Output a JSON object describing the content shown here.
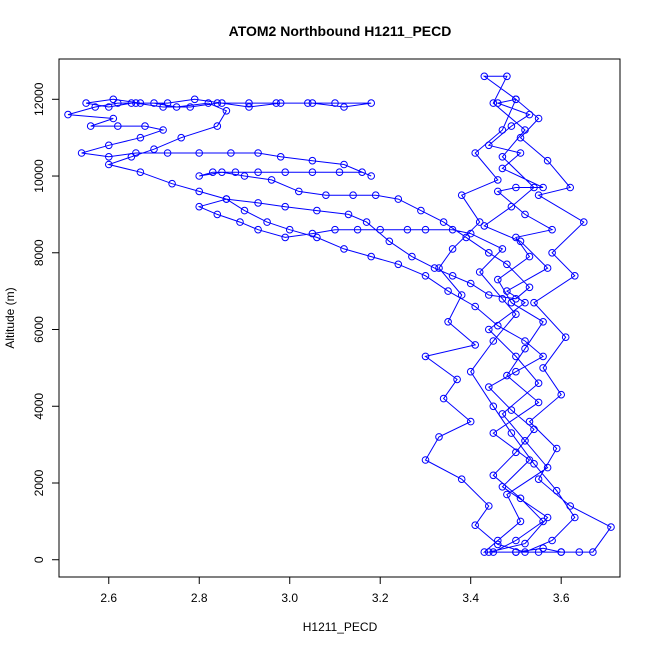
{
  "chart_data": {
    "type": "scatter",
    "title": "ATOM2 Northbound H1211_PECD",
    "xlabel": "H1211_PECD",
    "ylabel": "Altitude (m)",
    "xlim": [
      2.49,
      3.73
    ],
    "ylim": [
      -450,
      13050
    ],
    "x_ticks": [
      2.6,
      2.8,
      3.0,
      3.2,
      3.4,
      3.6
    ],
    "x_tick_labels": [
      "2.6",
      "2.8",
      "3.0",
      "3.2",
      "3.4",
      "3.6"
    ],
    "y_ticks": [
      0,
      2000,
      4000,
      6000,
      8000,
      10000,
      12000
    ],
    "y_tick_labels": [
      "0",
      "2000",
      "4000",
      "6000",
      "8000",
      "10000",
      "12000"
    ],
    "grid": false,
    "legend": "none",
    "series": [
      {
        "color": "#0000ff",
        "marker": "open-circle",
        "line": true,
        "points": [
          [
            3.44,
            200
          ],
          [
            3.52,
            420
          ],
          [
            3.57,
            1100
          ],
          [
            3.47,
            1900
          ],
          [
            3.53,
            2600
          ],
          [
            3.45,
            3300
          ],
          [
            3.55,
            4100
          ],
          [
            3.48,
            4800
          ],
          [
            3.52,
            5500
          ],
          [
            3.56,
            6200
          ],
          [
            3.49,
            6700
          ],
          [
            3.46,
            7300
          ],
          [
            3.53,
            7900
          ],
          [
            3.5,
            8400
          ],
          [
            3.58,
            8600
          ],
          [
            3.52,
            9000
          ],
          [
            3.46,
            9600
          ],
          [
            3.5,
            9700
          ],
          [
            3.56,
            9700
          ],
          [
            3.47,
            10200
          ],
          [
            3.51,
            10600
          ],
          [
            3.44,
            10800
          ],
          [
            3.49,
            11300
          ],
          [
            3.53,
            11600
          ],
          [
            3.46,
            11900
          ],
          [
            3.5,
            12000
          ],
          [
            3.43,
            12600
          ],
          [
            3.48,
            12600
          ],
          [
            3.45,
            11900
          ],
          [
            3.52,
            11200
          ],
          [
            3.47,
            10500
          ],
          [
            3.54,
            9700
          ],
          [
            3.49,
            9200
          ],
          [
            3.43,
            8700
          ],
          [
            3.51,
            8300
          ],
          [
            3.57,
            7600
          ],
          [
            3.48,
            7000
          ],
          [
            3.52,
            6700
          ],
          [
            3.44,
            6000
          ],
          [
            3.5,
            5300
          ],
          [
            3.55,
            4600
          ],
          [
            3.47,
            3800
          ],
          [
            3.52,
            3100
          ],
          [
            3.57,
            2400
          ],
          [
            3.48,
            1700
          ],
          [
            3.51,
            1000
          ],
          [
            3.46,
            500
          ],
          [
            3.43,
            200
          ],
          [
            3.5,
            200
          ],
          [
            3.56,
            300
          ],
          [
            3.6,
            200
          ],
          [
            3.67,
            200
          ],
          [
            3.71,
            850
          ],
          [
            3.62,
            1400
          ],
          [
            3.55,
            2100
          ],
          [
            3.59,
            2900
          ],
          [
            3.53,
            3600
          ],
          [
            3.6,
            4300
          ],
          [
            3.56,
            5000
          ],
          [
            3.61,
            5800
          ],
          [
            3.54,
            6700
          ],
          [
            3.63,
            7400
          ],
          [
            3.58,
            8000
          ],
          [
            3.65,
            8800
          ],
          [
            3.55,
            9500
          ],
          [
            3.62,
            9700
          ],
          [
            3.57,
            10400
          ],
          [
            3.51,
            11000
          ],
          [
            3.55,
            11500
          ],
          [
            3.5,
            12000
          ],
          [
            3.47,
            11200
          ],
          [
            3.41,
            10600
          ],
          [
            3.46,
            9900
          ],
          [
            3.38,
            9500
          ],
          [
            3.42,
            8800
          ],
          [
            3.36,
            8100
          ],
          [
            3.33,
            7600
          ],
          [
            3.38,
            6900
          ],
          [
            3.35,
            6200
          ],
          [
            3.41,
            5600
          ],
          [
            3.3,
            5300
          ],
          [
            3.37,
            4700
          ],
          [
            3.34,
            4200
          ],
          [
            3.4,
            3600
          ],
          [
            3.33,
            3200
          ],
          [
            3.3,
            2600
          ],
          [
            3.38,
            2100
          ],
          [
            3.44,
            1400
          ],
          [
            3.41,
            900
          ],
          [
            3.46,
            400
          ],
          [
            3.52,
            200
          ],
          [
            3.58,
            500
          ],
          [
            3.63,
            1100
          ],
          [
            3.59,
            1800
          ],
          [
            3.54,
            2500
          ],
          [
            3.49,
            3300
          ],
          [
            3.45,
            4000
          ],
          [
            3.4,
            4900
          ],
          [
            3.45,
            5700
          ],
          [
            3.5,
            6400
          ],
          [
            3.47,
            6800
          ],
          [
            3.42,
            7500
          ],
          [
            3.47,
            8100
          ],
          [
            3.4,
            8500
          ],
          [
            3.36,
            8600
          ],
          [
            3.3,
            8600
          ],
          [
            3.26,
            8600
          ],
          [
            3.2,
            8600
          ],
          [
            3.15,
            8600
          ],
          [
            3.1,
            8600
          ],
          [
            3.05,
            8500
          ],
          [
            2.99,
            8400
          ],
          [
            2.93,
            8600
          ],
          [
            2.89,
            8800
          ],
          [
            2.84,
            9000
          ],
          [
            2.8,
            9200
          ],
          [
            2.86,
            9400
          ],
          [
            2.93,
            9300
          ],
          [
            2.99,
            9200
          ],
          [
            3.06,
            9100
          ],
          [
            3.13,
            9000
          ],
          [
            3.17,
            8800
          ],
          [
            3.22,
            8300
          ],
          [
            3.27,
            7900
          ],
          [
            3.32,
            7600
          ],
          [
            3.36,
            7400
          ],
          [
            3.4,
            7200
          ],
          [
            3.44,
            6900
          ],
          [
            3.5,
            6800
          ],
          [
            3.53,
            7100
          ],
          [
            3.48,
            7700
          ],
          [
            3.44,
            8000
          ],
          [
            3.39,
            8400
          ],
          [
            3.34,
            8800
          ],
          [
            3.29,
            9100
          ],
          [
            3.24,
            9400
          ],
          [
            3.19,
            9500
          ],
          [
            3.14,
            9500
          ],
          [
            3.08,
            9500
          ],
          [
            3.02,
            9600
          ],
          [
            2.96,
            9900
          ],
          [
            2.9,
            10000
          ],
          [
            2.85,
            10100
          ],
          [
            2.8,
            10000
          ],
          [
            2.83,
            10100
          ],
          [
            2.88,
            10100
          ],
          [
            2.93,
            10100
          ],
          [
            2.99,
            10100
          ],
          [
            3.05,
            10100
          ],
          [
            3.11,
            10100
          ],
          [
            3.16,
            10100
          ],
          [
            3.18,
            10000
          ],
          [
            3.12,
            10300
          ],
          [
            3.05,
            10400
          ],
          [
            2.98,
            10500
          ],
          [
            2.93,
            10600
          ],
          [
            2.87,
            10600
          ],
          [
            2.8,
            10600
          ],
          [
            2.73,
            10600
          ],
          [
            2.66,
            10600
          ],
          [
            2.6,
            10500
          ],
          [
            2.54,
            10600
          ],
          [
            2.6,
            10800
          ],
          [
            2.67,
            11000
          ],
          [
            2.72,
            11200
          ],
          [
            2.68,
            11300
          ],
          [
            2.62,
            11300
          ],
          [
            2.56,
            11300
          ],
          [
            2.61,
            11500
          ],
          [
            2.51,
            11600
          ],
          [
            2.57,
            11800
          ],
          [
            2.62,
            11900
          ],
          [
            2.66,
            11900
          ],
          [
            2.72,
            11800
          ],
          [
            2.78,
            11800
          ],
          [
            2.84,
            11900
          ],
          [
            2.91,
            11900
          ],
          [
            2.97,
            11900
          ],
          [
            3.04,
            11900
          ],
          [
            3.1,
            11900
          ],
          [
            3.18,
            11900
          ],
          [
            3.12,
            11800
          ],
          [
            3.05,
            11900
          ],
          [
            2.98,
            11900
          ],
          [
            2.91,
            11800
          ],
          [
            2.85,
            11900
          ],
          [
            2.79,
            12000
          ],
          [
            2.73,
            11900
          ],
          [
            2.67,
            11900
          ],
          [
            2.61,
            12000
          ],
          [
            2.55,
            11900
          ],
          [
            2.6,
            11800
          ],
          [
            2.65,
            11900
          ],
          [
            2.7,
            11900
          ],
          [
            2.75,
            11800
          ],
          [
            2.82,
            11900
          ],
          [
            2.86,
            11700
          ],
          [
            2.84,
            11300
          ],
          [
            2.76,
            11000
          ],
          [
            2.7,
            10700
          ],
          [
            2.65,
            10500
          ],
          [
            2.6,
            10300
          ],
          [
            2.67,
            10100
          ],
          [
            2.74,
            9800
          ],
          [
            2.8,
            9600
          ],
          [
            2.86,
            9400
          ],
          [
            2.9,
            9100
          ],
          [
            2.95,
            8800
          ],
          [
            3.0,
            8600
          ],
          [
            3.06,
            8400
          ],
          [
            3.12,
            8100
          ],
          [
            3.18,
            7900
          ],
          [
            3.24,
            7700
          ],
          [
            3.3,
            7400
          ],
          [
            3.35,
            7000
          ],
          [
            3.41,
            6600
          ],
          [
            3.46,
            6100
          ],
          [
            3.52,
            5700
          ],
          [
            3.56,
            5300
          ],
          [
            3.5,
            4900
          ],
          [
            3.44,
            4500
          ],
          [
            3.49,
            3900
          ],
          [
            3.54,
            3400
          ],
          [
            3.5,
            2800
          ],
          [
            3.45,
            2200
          ],
          [
            3.51,
            1600
          ],
          [
            3.56,
            1000
          ],
          [
            3.5,
            500
          ],
          [
            3.45,
            200
          ],
          [
            3.5,
            200
          ],
          [
            3.55,
            200
          ],
          [
            3.6,
            200
          ],
          [
            3.64,
            200
          ]
        ]
      }
    ]
  }
}
